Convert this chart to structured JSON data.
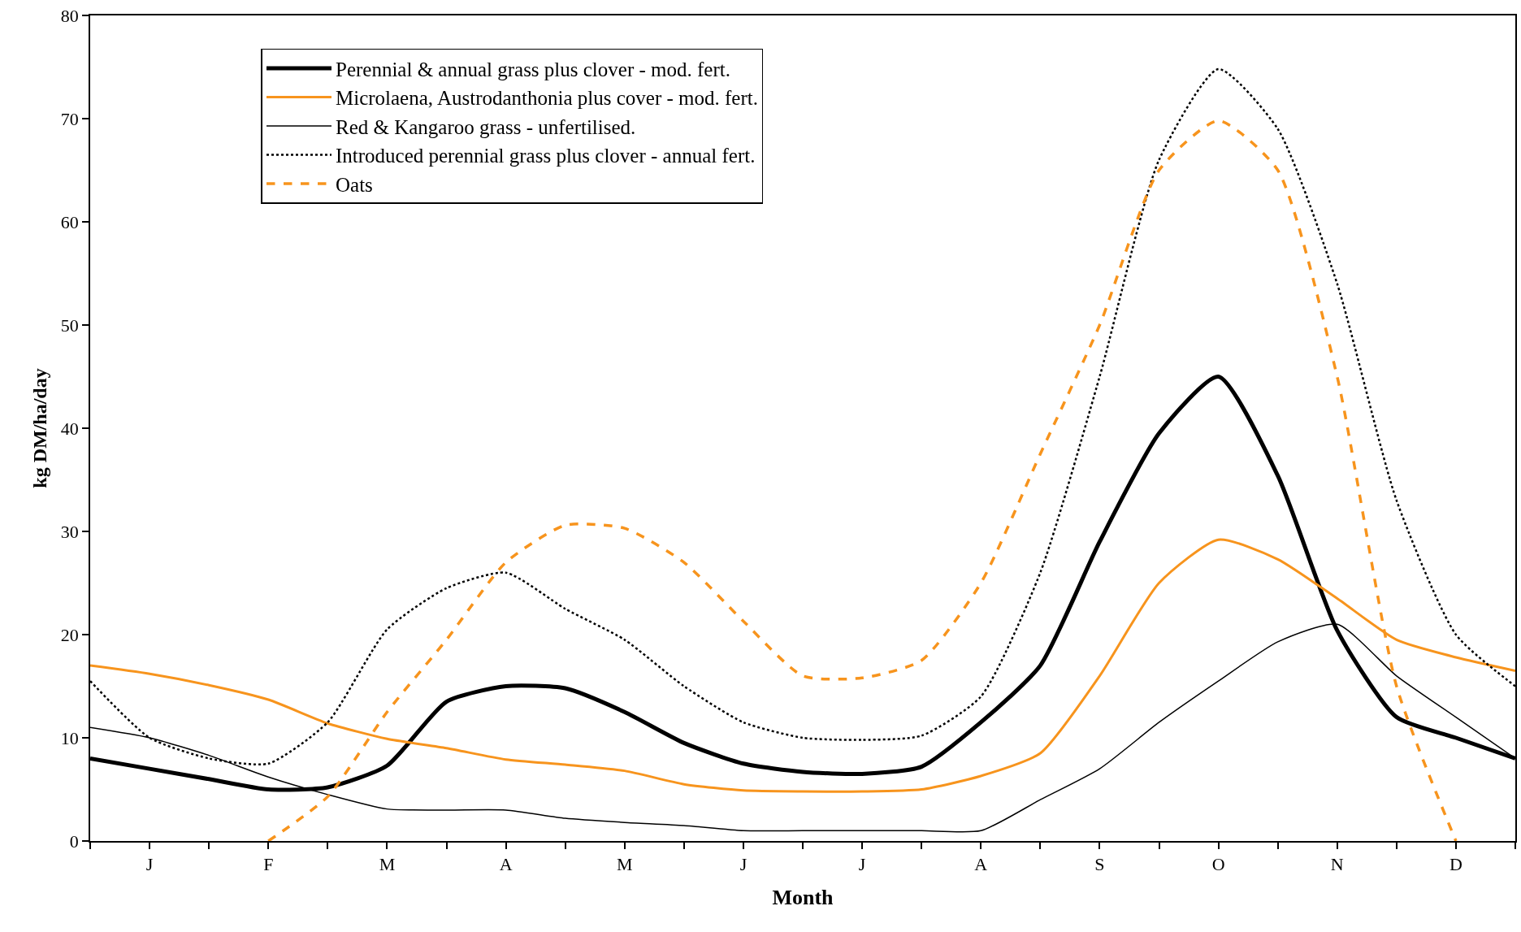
{
  "chart_data": {
    "type": "line",
    "xlabel": "Month",
    "ylabel": "kg DM/ha/day",
    "ylim": [
      0,
      80
    ],
    "yticks": [
      0,
      10,
      20,
      30,
      40,
      50,
      60,
      70,
      80
    ],
    "categories": [
      null,
      "J",
      null,
      "F",
      null,
      "M",
      null,
      "A",
      null,
      "M",
      null,
      "J",
      null,
      "J",
      null,
      "A",
      null,
      "S",
      null,
      "O",
      null,
      "N",
      null,
      "D",
      null
    ],
    "legend": "top left",
    "marker": "none",
    "series": [
      {
        "name": "Perennial & annual grass plus clover - mod. fert.",
        "color": "#000000",
        "line_style": "solid",
        "values": [
          8,
          7,
          6,
          5,
          5.2,
          7.3,
          13.5,
          15,
          14.8,
          12.5,
          9.5,
          7.5,
          6.7,
          6.5,
          7.2,
          11.5,
          17,
          29,
          39.5,
          45,
          35.4,
          20.4,
          12,
          10,
          8
        ]
      },
      {
        "name": "Microlaena, Austrodanthonia plus cover - mod. fert.",
        "color": "#f7941d",
        "line_style": "solid",
        "values": [
          17,
          16.2,
          15.1,
          13.7,
          11.4,
          9.9,
          9,
          7.9,
          7.4,
          6.8,
          5.5,
          4.9,
          4.8,
          4.8,
          5,
          6.3,
          8.5,
          16,
          25,
          29.2,
          27.3,
          23.5,
          19.5,
          17.8,
          16.5
        ]
      },
      {
        "name": "Red & Kangaroo grass - unfertilised.",
        "color": "#000000",
        "line_style": "solid",
        "values": [
          11,
          10,
          8.3,
          6.2,
          4.5,
          3.1,
          3,
          3,
          2.2,
          1.8,
          1.5,
          1,
          1,
          1,
          1,
          1,
          4,
          7,
          11.5,
          15.5,
          19.3,
          21,
          16,
          12,
          8
        ]
      },
      {
        "name": "Introduced perennial grass plus clover - annual fert.",
        "color": "#000000",
        "line_style": "dotted",
        "values": [
          15.5,
          10,
          8,
          7.5,
          11.5,
          20.5,
          24.5,
          26,
          22.5,
          19.5,
          15,
          11.5,
          10,
          9.8,
          10.2,
          14,
          26,
          45,
          66,
          74.8,
          69,
          54,
          33,
          20,
          15
        ]
      },
      {
        "name": "Oats",
        "color": "#f7941d",
        "line_style": "dashed",
        "values": [
          null,
          null,
          null,
          0,
          4.3,
          12.5,
          19.5,
          27,
          30.6,
          30.3,
          27,
          21.3,
          16,
          15.8,
          17.5,
          25,
          37.5,
          50,
          65,
          69.8,
          65,
          45,
          15,
          0,
          null
        ]
      }
    ]
  }
}
